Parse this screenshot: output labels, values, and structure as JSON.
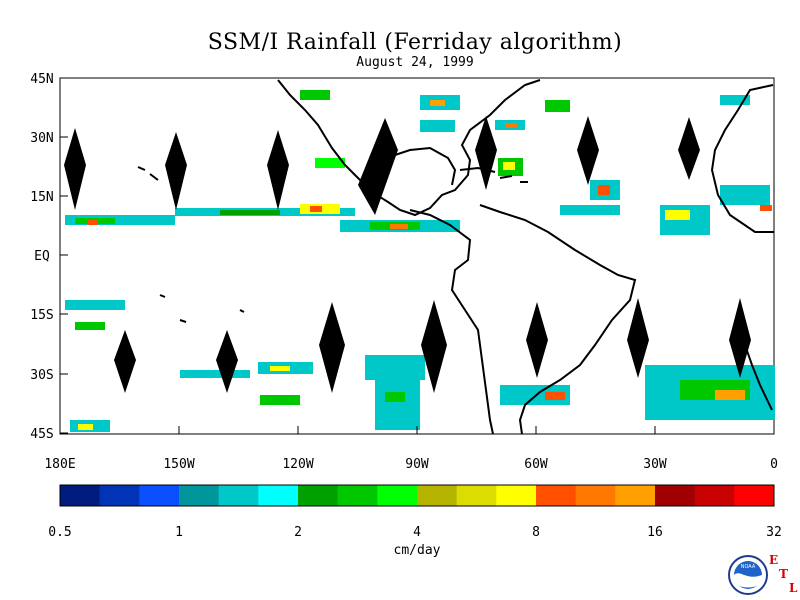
{
  "title": "SSM/I Rainfall (Ferriday algorithm)",
  "subtitle": "August 24, 1999",
  "map": {
    "lat_labels": [
      "45N",
      "30N",
      "15N",
      "EQ",
      "15S",
      "30S",
      "45S"
    ],
    "lon_labels": [
      "180E",
      "150W",
      "120W",
      "90W",
      "60W",
      "30W",
      "0"
    ],
    "lat_range": [
      -45,
      45
    ],
    "lon_range": [
      -180,
      0
    ]
  },
  "colorbar": {
    "colors": [
      "#001d7d",
      "#0033b5",
      "#0a50ff",
      "#00969a",
      "#00c8c8",
      "#00ffff",
      "#00a000",
      "#00c800",
      "#00ff00",
      "#b4b400",
      "#dcdc00",
      "#ffff00",
      "#ff5000",
      "#ff7800",
      "#ffa000",
      "#a00000",
      "#c80000",
      "#ff0000"
    ],
    "tick_labels": [
      "0.5",
      "1",
      "2",
      "4",
      "8",
      "16",
      "32"
    ],
    "unit_label": "cm/day"
  },
  "logo": {
    "noaa_text": "NOAA",
    "etl_letters": [
      "E",
      "T",
      "L"
    ]
  }
}
